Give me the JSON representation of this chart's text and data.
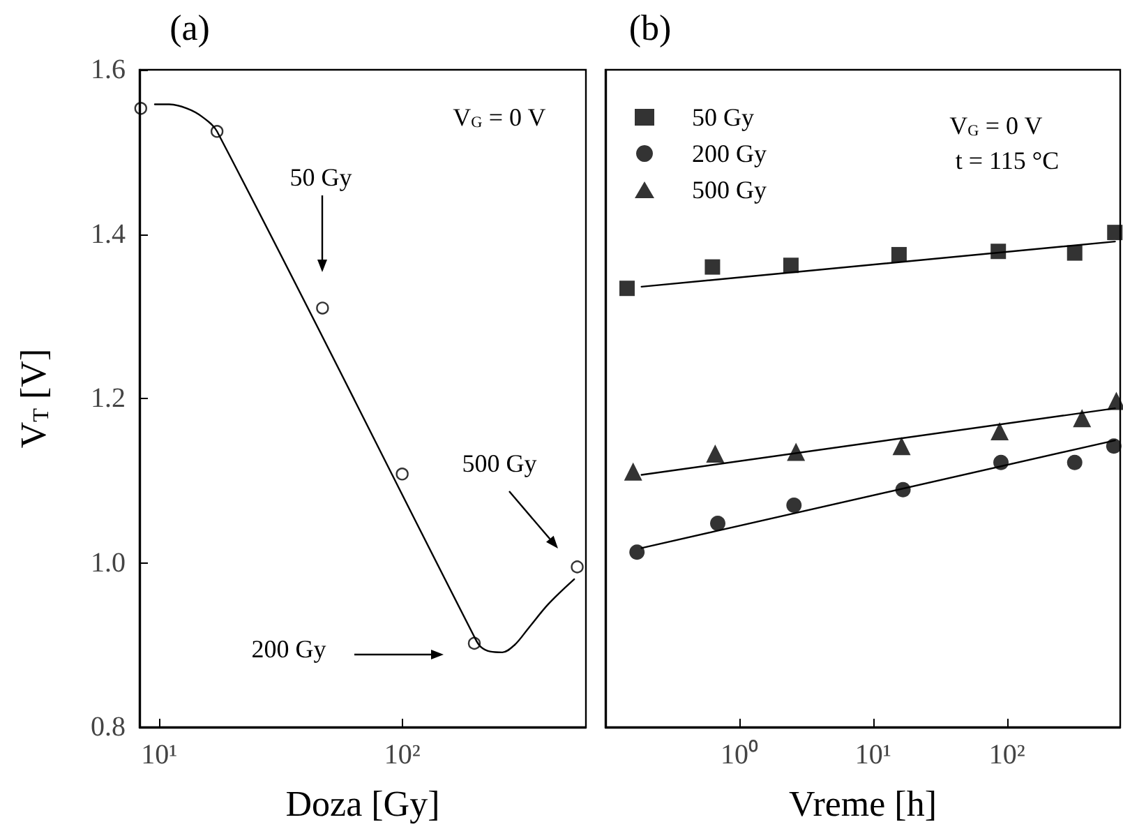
{
  "chart_data": [
    {
      "type": "scatter",
      "title": "(a)",
      "xlabel": "Doza [Gy]",
      "ylabel": "V$_{T}$ [V]",
      "log": "x",
      "grid": false,
      "legend": false,
      "xlim": [
        8.3,
        570
      ],
      "xticks": [
        {
          "value": 10,
          "label": "10¹"
        },
        {
          "value": 100,
          "label": "10²"
        }
      ],
      "ylim": [
        0.8,
        1.6
      ],
      "yticks": [
        {
          "value": 0.8,
          "label": "0.8"
        },
        {
          "value": 1.0,
          "label": "1.0"
        },
        {
          "value": 1.2,
          "label": "1.2"
        },
        {
          "value": 1.4,
          "label": "1.4"
        },
        {
          "value": 1.6,
          "label": "1.6"
        }
      ],
      "series": [
        {
          "type": "scatter",
          "marker": "circle",
          "color": "#000000",
          "x": [
            8.4,
            17.3,
            47,
            100,
            198,
            525
          ],
          "values": [
            1.553,
            1.525,
            1.31,
            1.108,
            0.902,
            0.995
          ]
        },
        {
          "type": "line",
          "color": "#000000",
          "x": [
            9.6,
            11,
            13,
            15,
            17.3,
            198,
            210,
            230,
            258,
            290,
            330,
            400,
            510
          ],
          "values": [
            1.558,
            1.558,
            1.553,
            1.543,
            1.525,
            0.91,
            0.898,
            0.892,
            0.891,
            0.9,
            0.92,
            0.95,
            0.98
          ]
        }
      ],
      "annotations": [
        "50 Gy",
        "200 Gy",
        "500 Gy",
        "V$_{G}$ = 0 V"
      ]
    },
    {
      "type": "scatter",
      "title": "(b)",
      "xlabel": "Vreme [h]",
      "log": "x",
      "grid": false,
      "legend": "top left",
      "tick_labels": "x",
      "xlim": [
        0.1,
        700
      ],
      "xticks": [
        {
          "value": 1,
          "label": "10⁰"
        },
        {
          "value": 10,
          "label": "10¹"
        },
        {
          "value": 100,
          "label": "10²"
        }
      ],
      "ylim": [
        0.8,
        1.6
      ],
      "series": [
        {
          "name": "50 Gy",
          "type": "scatter",
          "marker": "square",
          "color": "#000000",
          "x": [
            0.145,
            0.63,
            2.43,
            15.6,
            86,
            320,
            638
          ],
          "values": [
            1.334,
            1.36,
            1.362,
            1.375,
            1.379,
            1.377,
            1.402
          ]
        },
        {
          "name": "200 Gy",
          "type": "scatter",
          "marker": "circle",
          "color": "#000000",
          "x": [
            0.172,
            0.69,
            2.56,
            16.7,
            90,
            320,
            627
          ],
          "values": [
            1.013,
            1.048,
            1.07,
            1.089,
            1.122,
            1.122,
            1.142
          ]
        },
        {
          "name": "500 Gy",
          "type": "scatter",
          "marker": "triangle",
          "color": "#000000",
          "x": [
            0.161,
            0.66,
            2.65,
            16.3,
            88,
            363,
            655
          ],
          "values": [
            1.111,
            1.133,
            1.135,
            1.142,
            1.16,
            1.176,
            1.197
          ]
        },
        {
          "type": "line",
          "color": "#000000",
          "x": [
            0.186,
            640
          ],
          "values": [
            1.336,
            1.391
          ]
        },
        {
          "type": "line",
          "color": "#000000",
          "x": [
            0.186,
            640
          ],
          "values": [
            1.018,
            1.149
          ]
        },
        {
          "type": "line",
          "color": "#000000",
          "x": [
            0.186,
            640
          ],
          "values": [
            1.107,
            1.188
          ]
        }
      ],
      "annotations": [
        "V$_{G}$ = 0 V",
        "t = 115 °C"
      ]
    }
  ]
}
